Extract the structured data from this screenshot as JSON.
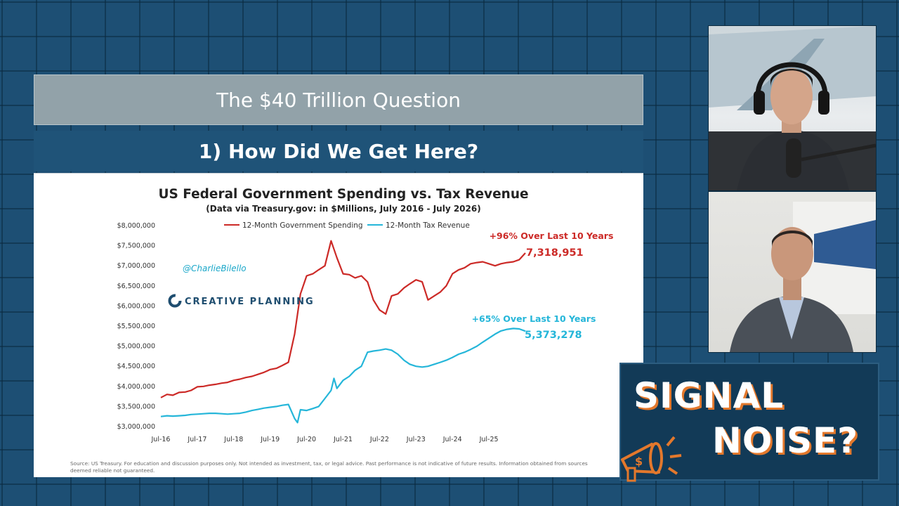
{
  "slide": {
    "title": "The $40 Trillion Question",
    "subtitle": "1) How Did We Get Here?"
  },
  "chart_data": {
    "type": "line",
    "title": "US Federal Government Spending vs. Tax Revenue",
    "subtitle": "(Data via Treasury.gov: in $Millions, July 2016 - July 2026)",
    "y_tick_labels": [
      "$3,000,000",
      "$3,500,000",
      "$4,000,000",
      "$4,500,000",
      "$5,000,000",
      "$5,500,000",
      "$6,000,000",
      "$6,500,000",
      "$7,000,000",
      "$7,500,000",
      "$8,000,000"
    ],
    "x_tick_labels": [
      "Jul-16",
      "Jul-17",
      "Jul-18",
      "Jul-19",
      "Jul-20",
      "Jul-21",
      "Jul-22",
      "Jul-23",
      "Jul-24",
      "Jul-25"
    ],
    "ylim": [
      3000000,
      8000000
    ],
    "xlim": [
      2016.5,
      2026.5
    ],
    "legend_position": "top-center",
    "grid": false,
    "series": [
      {
        "name": "12-Month Government Spending",
        "color": "#cc2a27",
        "points": [
          [
            2016.5,
            3720000
          ],
          [
            2016.67,
            3800000
          ],
          [
            2016.83,
            3780000
          ],
          [
            2017.0,
            3850000
          ],
          [
            2017.17,
            3860000
          ],
          [
            2017.33,
            3900000
          ],
          [
            2017.5,
            3990000
          ],
          [
            2017.67,
            4000000
          ],
          [
            2017.83,
            4030000
          ],
          [
            2018.0,
            4050000
          ],
          [
            2018.17,
            4080000
          ],
          [
            2018.33,
            4100000
          ],
          [
            2018.5,
            4150000
          ],
          [
            2018.67,
            4180000
          ],
          [
            2018.83,
            4220000
          ],
          [
            2019.0,
            4250000
          ],
          [
            2019.17,
            4300000
          ],
          [
            2019.33,
            4350000
          ],
          [
            2019.5,
            4420000
          ],
          [
            2019.67,
            4450000
          ],
          [
            2019.83,
            4520000
          ],
          [
            2020.0,
            4600000
          ],
          [
            2020.17,
            5300000
          ],
          [
            2020.33,
            6300000
          ],
          [
            2020.5,
            6750000
          ],
          [
            2020.67,
            6800000
          ],
          [
            2020.83,
            6900000
          ],
          [
            2021.0,
            7000000
          ],
          [
            2021.17,
            7620000
          ],
          [
            2021.33,
            7200000
          ],
          [
            2021.5,
            6800000
          ],
          [
            2021.67,
            6780000
          ],
          [
            2021.83,
            6700000
          ],
          [
            2022.0,
            6750000
          ],
          [
            2022.17,
            6600000
          ],
          [
            2022.33,
            6150000
          ],
          [
            2022.5,
            5900000
          ],
          [
            2022.67,
            5800000
          ],
          [
            2022.83,
            6250000
          ],
          [
            2023.0,
            6300000
          ],
          [
            2023.17,
            6450000
          ],
          [
            2023.33,
            6550000
          ],
          [
            2023.5,
            6650000
          ],
          [
            2023.67,
            6600000
          ],
          [
            2023.83,
            6150000
          ],
          [
            2024.0,
            6250000
          ],
          [
            2024.17,
            6350000
          ],
          [
            2024.33,
            6500000
          ],
          [
            2024.5,
            6800000
          ],
          [
            2024.67,
            6900000
          ],
          [
            2024.83,
            6950000
          ],
          [
            2025.0,
            7050000
          ],
          [
            2025.17,
            7080000
          ],
          [
            2025.33,
            7100000
          ],
          [
            2025.5,
            7050000
          ],
          [
            2025.67,
            7000000
          ],
          [
            2025.83,
            7050000
          ],
          [
            2026.0,
            7080000
          ],
          [
            2026.17,
            7100000
          ],
          [
            2026.33,
            7150000
          ],
          [
            2026.5,
            7318951
          ]
        ]
      },
      {
        "name": "12-Month Tax Revenue",
        "color": "#25b6d9",
        "points": [
          [
            2016.5,
            3250000
          ],
          [
            2016.67,
            3270000
          ],
          [
            2016.83,
            3260000
          ],
          [
            2017.0,
            3270000
          ],
          [
            2017.17,
            3280000
          ],
          [
            2017.33,
            3300000
          ],
          [
            2017.5,
            3310000
          ],
          [
            2017.67,
            3320000
          ],
          [
            2017.83,
            3330000
          ],
          [
            2018.0,
            3330000
          ],
          [
            2018.17,
            3320000
          ],
          [
            2018.33,
            3310000
          ],
          [
            2018.5,
            3320000
          ],
          [
            2018.67,
            3330000
          ],
          [
            2018.83,
            3360000
          ],
          [
            2019.0,
            3400000
          ],
          [
            2019.17,
            3430000
          ],
          [
            2019.33,
            3460000
          ],
          [
            2019.5,
            3480000
          ],
          [
            2019.67,
            3500000
          ],
          [
            2019.83,
            3530000
          ],
          [
            2020.0,
            3550000
          ],
          [
            2020.17,
            3200000
          ],
          [
            2020.25,
            3100000
          ],
          [
            2020.33,
            3420000
          ],
          [
            2020.5,
            3400000
          ],
          [
            2020.67,
            3450000
          ],
          [
            2020.83,
            3500000
          ],
          [
            2021.0,
            3700000
          ],
          [
            2021.17,
            3900000
          ],
          [
            2021.25,
            4200000
          ],
          [
            2021.33,
            3950000
          ],
          [
            2021.5,
            4150000
          ],
          [
            2021.67,
            4250000
          ],
          [
            2021.83,
            4400000
          ],
          [
            2022.0,
            4500000
          ],
          [
            2022.17,
            4850000
          ],
          [
            2022.33,
            4880000
          ],
          [
            2022.5,
            4900000
          ],
          [
            2022.67,
            4930000
          ],
          [
            2022.83,
            4900000
          ],
          [
            2023.0,
            4800000
          ],
          [
            2023.17,
            4650000
          ],
          [
            2023.33,
            4550000
          ],
          [
            2023.5,
            4500000
          ],
          [
            2023.67,
            4480000
          ],
          [
            2023.83,
            4500000
          ],
          [
            2024.0,
            4550000
          ],
          [
            2024.17,
            4600000
          ],
          [
            2024.33,
            4650000
          ],
          [
            2024.5,
            4720000
          ],
          [
            2024.67,
            4800000
          ],
          [
            2024.83,
            4850000
          ],
          [
            2025.0,
            4920000
          ],
          [
            2025.17,
            5000000
          ],
          [
            2025.33,
            5100000
          ],
          [
            2025.5,
            5200000
          ],
          [
            2025.67,
            5300000
          ],
          [
            2025.83,
            5380000
          ],
          [
            2026.0,
            5420000
          ],
          [
            2026.17,
            5440000
          ],
          [
            2026.33,
            5430000
          ],
          [
            2026.5,
            5373278
          ]
        ]
      }
    ],
    "annotations": {
      "spending_change": "+96% Over Last 10 Years",
      "spending_last": "7,318,951",
      "revenue_change": "+65% Over Last 10 Years",
      "revenue_last": "5,373,278",
      "handle": "@CharlieBilello",
      "logo": "CREATIVE PLANNING"
    },
    "footnote": "Source: US Treasury. For education and discussion purposes only. Not intended as investment, tax, or legal advice. Past performance is not indicative of future results. Information obtained from sources deemed reliable not guaranteed."
  },
  "brand": {
    "line1": "SIGNAL",
    "line2": "NOISE?",
    "accent_color": "#e3782c",
    "icon": "megaphone-icon"
  }
}
